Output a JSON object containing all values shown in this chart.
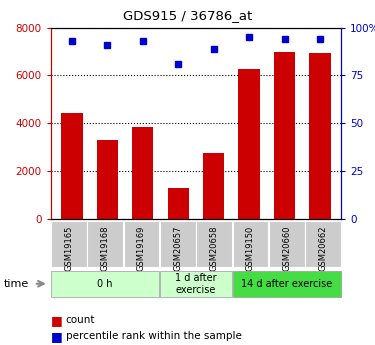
{
  "title": "GDS915 / 36786_at",
  "samples": [
    "GSM19165",
    "GSM19168",
    "GSM19169",
    "GSM20657",
    "GSM20658",
    "GSM19150",
    "GSM20660",
    "GSM20662"
  ],
  "counts": [
    4450,
    3300,
    3850,
    1300,
    2750,
    6250,
    7000,
    6950
  ],
  "percentiles": [
    93,
    91,
    93,
    81,
    89,
    95,
    94,
    94
  ],
  "group_spans": [
    {
      "start": 0,
      "end": 3,
      "label": "0 h",
      "color": "#ccffcc"
    },
    {
      "start": 3,
      "end": 5,
      "label": "1 d after\nexercise",
      "color": "#ccffcc"
    },
    {
      "start": 5,
      "end": 8,
      "label": "14 d after exercise",
      "color": "#44dd44"
    }
  ],
  "bar_color": "#cc0000",
  "dot_color": "#0000cc",
  "ylim_left": [
    0,
    8000
  ],
  "ylim_right": [
    0,
    100
  ],
  "yticks_left": [
    0,
    2000,
    4000,
    6000,
    8000
  ],
  "ytick_labels_left": [
    "0",
    "2000",
    "4000",
    "6000",
    "8000"
  ],
  "yticks_right": [
    0,
    25,
    50,
    75,
    100
  ],
  "ytick_labels_right": [
    "0",
    "25",
    "50",
    "75",
    "100%"
  ],
  "left_axis_color": "#cc0000",
  "right_axis_color": "#0000cc",
  "legend_count_label": "count",
  "legend_pct_label": "percentile rank within the sample",
  "time_label": "time",
  "grid_color": "#000000",
  "tick_area_color": "#cccccc",
  "group_colors": [
    "#ccffcc",
    "#ccffcc",
    "#44dd44"
  ]
}
